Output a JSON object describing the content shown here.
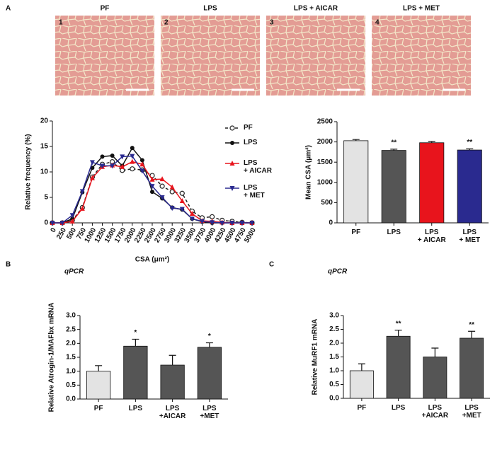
{
  "figure_a": {
    "panel": "A",
    "items": [
      {
        "title": "PF",
        "number": "1"
      },
      {
        "title": "LPS",
        "number": "2"
      },
      {
        "title": "LPS + AICAR",
        "number": "3"
      },
      {
        "title": "LPS + MET",
        "number": "4"
      }
    ]
  },
  "chart_data": [
    {
      "type": "line",
      "y_label": "Relative frequency (%)",
      "x_label": "CSA (μm²)",
      "x": [
        0,
        250,
        500,
        750,
        1000,
        1250,
        1500,
        1750,
        2000,
        2250,
        2500,
        2750,
        3000,
        3250,
        3500,
        3750,
        4000,
        4250,
        4500,
        4750,
        5000
      ],
      "xlim": [
        0,
        5000
      ],
      "xticks": [
        0,
        250,
        500,
        750,
        1000,
        1250,
        1500,
        1750,
        2000,
        2250,
        2500,
        2750,
        3000,
        3250,
        3500,
        3750,
        4000,
        4250,
        4500,
        4750,
        5000
      ],
      "ylim": [
        0,
        20
      ],
      "yticks": [
        0,
        5,
        10,
        15,
        20
      ],
      "series": [
        {
          "name": "PF",
          "color": "#222222",
          "marker": "open-circle",
          "dashed": true,
          "values": [
            0,
            0,
            0.5,
            3,
            9,
            11.5,
            12,
            10.3,
            10.6,
            10.4,
            9.3,
            7.2,
            6.1,
            5.8,
            2.3,
            1.0,
            1.2,
            0.5,
            0.3,
            0.1,
            0
          ]
        },
        {
          "name": "LPS",
          "color": "#111111",
          "marker": "circle",
          "dashed": false,
          "values": [
            0,
            0,
            0.8,
            6,
            10.8,
            13,
            13.2,
            11.2,
            14.7,
            12.3,
            6.1,
            4.8,
            3.0,
            2.6,
            0.8,
            0.2,
            0,
            0,
            0,
            0,
            0
          ]
        },
        {
          "name": "LPS\n+ AICAR",
          "color": "#e8141c",
          "marker": "triangle",
          "dashed": false,
          "values": [
            0,
            0,
            0.3,
            2.8,
            8.8,
            11,
            11.3,
            11,
            12,
            11.5,
            8.5,
            8.6,
            7.0,
            4.3,
            1.8,
            0.4,
            0.3,
            0.1,
            0,
            0,
            0
          ]
        },
        {
          "name": "LPS\n+ MET",
          "color": "#2a2a8f",
          "marker": "triangle-down",
          "dashed": false,
          "values": [
            0,
            0,
            1.5,
            6.2,
            11.9,
            11.2,
            11.2,
            13,
            13.1,
            10.2,
            7.2,
            5,
            2.9,
            2.7,
            0.8,
            0.3,
            0.1,
            0,
            0,
            0,
            0
          ]
        }
      ]
    },
    {
      "type": "bar",
      "y_label": "Mean CSA (μm²)",
      "categories": [
        "PF",
        "LPS",
        "LPS\n+ AICAR",
        "LPS\n+ MET"
      ],
      "values": [
        2030,
        1790,
        1980,
        1800
      ],
      "errors": [
        30,
        30,
        30,
        30
      ],
      "colors": [
        "#e3e3e3",
        "#555555",
        "#e8141c",
        "#2a2a8f"
      ],
      "annotations": [
        {
          "index": 1,
          "text": "**"
        },
        {
          "index": 3,
          "text": "**"
        }
      ],
      "ylim": [
        0,
        2500
      ],
      "yticks": [
        0,
        500,
        1000,
        1500,
        2000,
        2500
      ]
    },
    {
      "type": "bar",
      "panel": "B",
      "subtitle": "qPCR",
      "y_label": "Relative Atrogin-1/MAFbx mRNA",
      "categories": [
        "PF",
        "LPS",
        "LPS\n+AICAR",
        "LPS\n+MET"
      ],
      "values": [
        1.0,
        1.9,
        1.22,
        1.86
      ],
      "errors": [
        0.2,
        0.25,
        0.35,
        0.16
      ],
      "colors": [
        "#e3e3e3",
        "#555555",
        "#555555",
        "#555555"
      ],
      "annotations": [
        {
          "index": 1,
          "text": "*"
        },
        {
          "index": 3,
          "text": "*"
        }
      ],
      "ylim": [
        0,
        3
      ],
      "yticks": [
        {
          "value": 0,
          "label": "0.0"
        },
        {
          "value": 0.5,
          "label": "0.5"
        },
        {
          "value": 1,
          "label": "1.0"
        },
        {
          "value": 1.5,
          "label": "1.5"
        },
        {
          "value": 2,
          "label": "2.0"
        },
        {
          "value": 2.5,
          "label": "2.5"
        },
        {
          "value": 3,
          "label": "3.0"
        }
      ]
    },
    {
      "type": "bar",
      "panel": "C",
      "subtitle": "qPCR",
      "y_label": "Relative MuRF1 mRNA",
      "categories": [
        "PF",
        "LPS",
        "LPS\n+AICAR",
        "LPS\n+MET"
      ],
      "values": [
        1.0,
        2.25,
        1.5,
        2.18
      ],
      "errors": [
        0.25,
        0.22,
        0.32,
        0.25
      ],
      "colors": [
        "#e3e3e3",
        "#555555",
        "#555555",
        "#555555"
      ],
      "annotations": [
        {
          "index": 1,
          "text": "**"
        },
        {
          "index": 3,
          "text": "**"
        }
      ],
      "ylim": [
        0,
        3
      ],
      "yticks": [
        {
          "value": 0,
          "label": "0.0"
        },
        {
          "value": 0.5,
          "label": "0.5"
        },
        {
          "value": 1,
          "label": "1.0"
        },
        {
          "value": 1.5,
          "label": "1.5"
        },
        {
          "value": 2,
          "label": "2.0"
        },
        {
          "value": 2.5,
          "label": "2.5"
        },
        {
          "value": 3,
          "label": "3.0"
        }
      ]
    }
  ]
}
